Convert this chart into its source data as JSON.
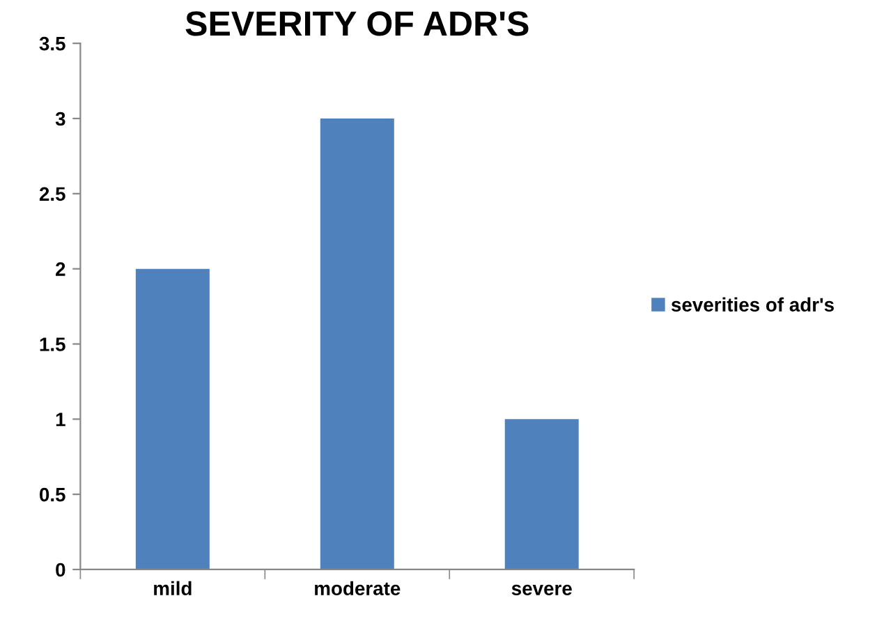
{
  "chart_data": {
    "type": "bar",
    "title": "SEVERITY OF ADR'S",
    "categories": [
      "mild",
      "moderate",
      "severe"
    ],
    "series": [
      {
        "name": "severities of adr's",
        "color": "#4f81bd",
        "values": [
          2,
          3,
          1
        ]
      }
    ],
    "ylim": [
      0,
      3.5
    ],
    "yticks": [
      0,
      0.5,
      1,
      1.5,
      2,
      2.5,
      3,
      3.5
    ],
    "grid": false,
    "legend": "right"
  }
}
